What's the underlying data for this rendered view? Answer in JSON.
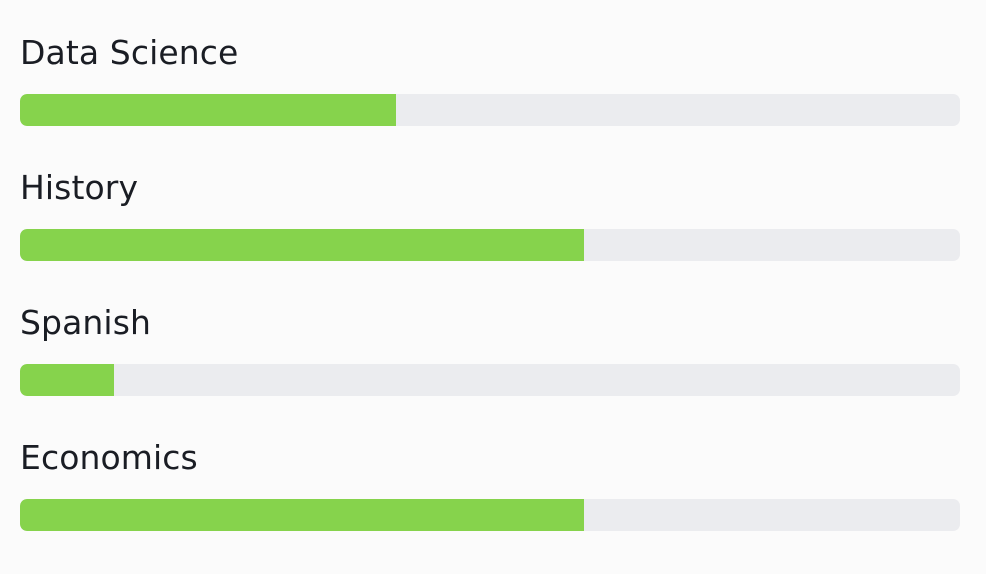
{
  "courses": [
    {
      "label": "Data Science",
      "progress_percent": 40
    },
    {
      "label": "History",
      "progress_percent": 60
    },
    {
      "label": "Spanish",
      "progress_percent": 10
    },
    {
      "label": "Economics",
      "progress_percent": 60
    }
  ],
  "colors": {
    "fill": "#86d34c",
    "track": "#ebecef",
    "text": "#1a1d24",
    "background": "#fbfbfb"
  }
}
